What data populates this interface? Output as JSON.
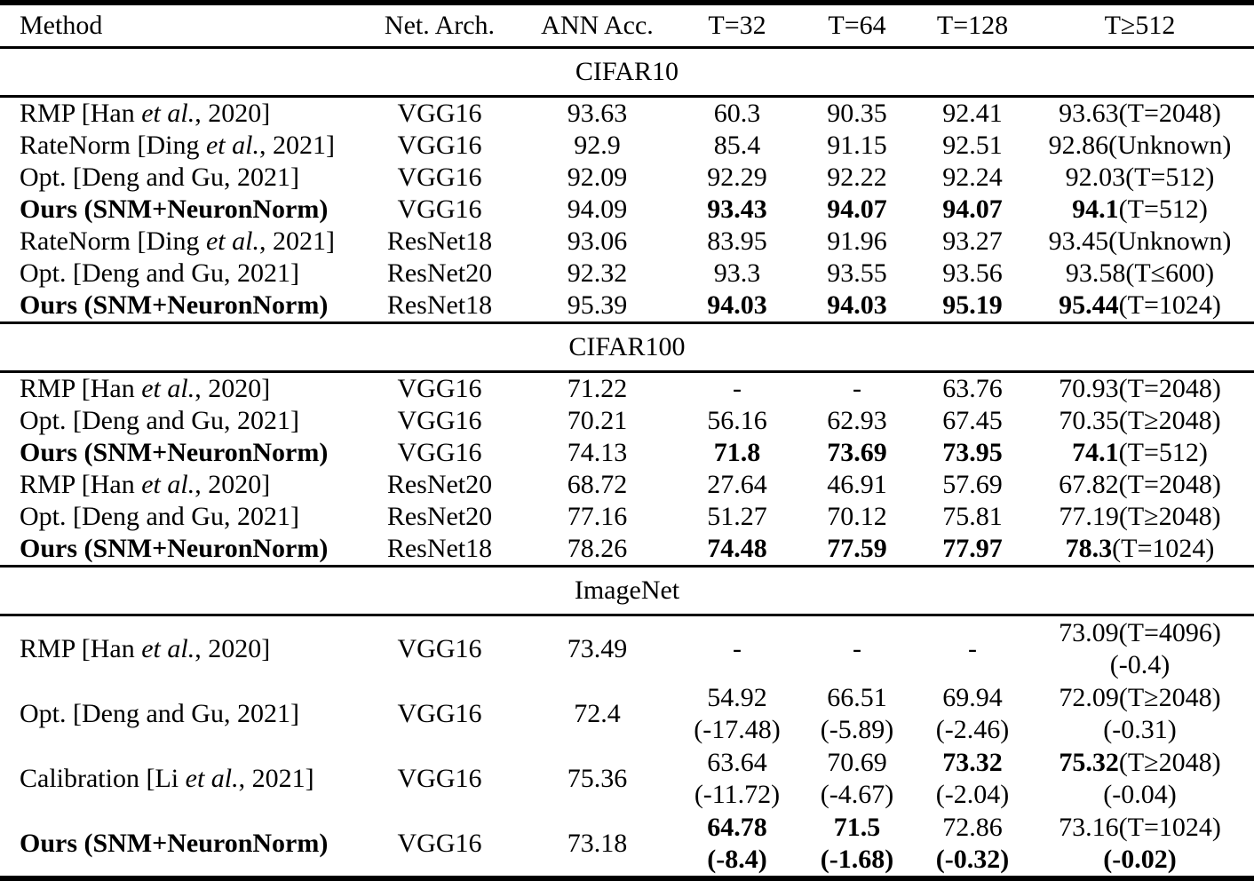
{
  "table": {
    "columns": [
      "Method",
      "Net. Arch.",
      "ANN Acc.",
      "T=32",
      "T=64",
      "T=128",
      "T≥512"
    ],
    "sections": [
      {
        "label": "CIFAR10",
        "rows": [
          {
            "method": [
              [
                "RMP [Han ",
                0,
                0
              ],
              [
                "et al.",
                0,
                1
              ],
              [
                ", 2020]",
                0,
                0
              ]
            ],
            "arch": "VGG16",
            "ann": "93.63",
            "t32": [
              [
                [
                  "60.3",
                  0
                ]
              ]
            ],
            "t64": [
              [
                [
                  "90.35",
                  0
                ]
              ]
            ],
            "t128": [
              [
                [
                  "92.41",
                  0
                ]
              ]
            ],
            "t512": [
              [
                [
                  "93.63(T=2048)",
                  0
                ]
              ]
            ]
          },
          {
            "method": [
              [
                "RateNorm [Ding ",
                0,
                0
              ],
              [
                "et al.",
                0,
                1
              ],
              [
                ", 2021]",
                0,
                0
              ]
            ],
            "arch": "VGG16",
            "ann": "92.9",
            "t32": [
              [
                [
                  "85.4",
                  0
                ]
              ]
            ],
            "t64": [
              [
                [
                  "91.15",
                  0
                ]
              ]
            ],
            "t128": [
              [
                [
                  "92.51",
                  0
                ]
              ]
            ],
            "t512": [
              [
                [
                  "92.86(Unknown)",
                  0
                ]
              ]
            ]
          },
          {
            "method": [
              [
                "Opt. [Deng and Gu, 2021]",
                0,
                0
              ]
            ],
            "arch": "VGG16",
            "ann": "92.09",
            "t32": [
              [
                [
                  "92.29",
                  0
                ]
              ]
            ],
            "t64": [
              [
                [
                  "92.22",
                  0
                ]
              ]
            ],
            "t128": [
              [
                [
                  "92.24",
                  0
                ]
              ]
            ],
            "t512": [
              [
                [
                  "92.03(T=512)",
                  0
                ]
              ]
            ]
          },
          {
            "method": [
              [
                "Ours (SNM+NeuronNorm)",
                1,
                0
              ]
            ],
            "arch": "VGG16",
            "ann": "94.09",
            "t32": [
              [
                [
                  "93.43",
                  1
                ]
              ]
            ],
            "t64": [
              [
                [
                  "94.07",
                  1
                ]
              ]
            ],
            "t128": [
              [
                [
                  "94.07",
                  1
                ]
              ]
            ],
            "t512": [
              [
                [
                  "94.1",
                  1
                ],
                [
                  "(T=512)",
                  0
                ]
              ]
            ]
          },
          {
            "method": [
              [
                "RateNorm [Ding ",
                0,
                0
              ],
              [
                "et al.",
                0,
                1
              ],
              [
                ", 2021]",
                0,
                0
              ]
            ],
            "arch": "ResNet18",
            "ann": "93.06",
            "t32": [
              [
                [
                  "83.95",
                  0
                ]
              ]
            ],
            "t64": [
              [
                [
                  "91.96",
                  0
                ]
              ]
            ],
            "t128": [
              [
                [
                  "93.27",
                  0
                ]
              ]
            ],
            "t512": [
              [
                [
                  "93.45(Unknown)",
                  0
                ]
              ]
            ]
          },
          {
            "method": [
              [
                "Opt. [Deng and Gu, 2021]",
                0,
                0
              ]
            ],
            "arch": "ResNet20",
            "ann": "92.32",
            "t32": [
              [
                [
                  "93.3",
                  0
                ]
              ]
            ],
            "t64": [
              [
                [
                  "93.55",
                  0
                ]
              ]
            ],
            "t128": [
              [
                [
                  "93.56",
                  0
                ]
              ]
            ],
            "t512": [
              [
                [
                  "93.58(T≤600)",
                  0
                ]
              ]
            ]
          },
          {
            "method": [
              [
                "Ours (SNM+NeuronNorm)",
                1,
                0
              ]
            ],
            "arch": "ResNet18",
            "ann": "95.39",
            "t32": [
              [
                [
                  "94.03",
                  1
                ]
              ]
            ],
            "t64": [
              [
                [
                  "94.03",
                  1
                ]
              ]
            ],
            "t128": [
              [
                [
                  "95.19",
                  1
                ]
              ]
            ],
            "t512": [
              [
                [
                  "95.44",
                  1
                ],
                [
                  "(T=1024)",
                  0
                ]
              ]
            ]
          }
        ]
      },
      {
        "label": "CIFAR100",
        "rows": [
          {
            "method": [
              [
                "RMP [Han ",
                0,
                0
              ],
              [
                "et al.",
                0,
                1
              ],
              [
                ", 2020]",
                0,
                0
              ]
            ],
            "arch": "VGG16",
            "ann": "71.22",
            "t32": [
              [
                [
                  "-",
                  0
                ]
              ]
            ],
            "t64": [
              [
                [
                  "-",
                  0
                ]
              ]
            ],
            "t128": [
              [
                [
                  "63.76",
                  0
                ]
              ]
            ],
            "t512": [
              [
                [
                  "70.93(T=2048)",
                  0
                ]
              ]
            ]
          },
          {
            "method": [
              [
                "Opt. [Deng and Gu, 2021]",
                0,
                0
              ]
            ],
            "arch": "VGG16",
            "ann": "70.21",
            "t32": [
              [
                [
                  "56.16",
                  0
                ]
              ]
            ],
            "t64": [
              [
                [
                  "62.93",
                  0
                ]
              ]
            ],
            "t128": [
              [
                [
                  "67.45",
                  0
                ]
              ]
            ],
            "t512": [
              [
                [
                  "70.35(T≥2048)",
                  0
                ]
              ]
            ]
          },
          {
            "method": [
              [
                "Ours (SNM+NeuronNorm)",
                1,
                0
              ]
            ],
            "arch": "VGG16",
            "ann": "74.13",
            "t32": [
              [
                [
                  "71.8",
                  1
                ]
              ]
            ],
            "t64": [
              [
                [
                  "73.69",
                  1
                ]
              ]
            ],
            "t128": [
              [
                [
                  "73.95",
                  1
                ]
              ]
            ],
            "t512": [
              [
                [
                  "74.1",
                  1
                ],
                [
                  "(T=512)",
                  0
                ]
              ]
            ]
          },
          {
            "method": [
              [
                "RMP [Han ",
                0,
                0
              ],
              [
                "et al.",
                0,
                1
              ],
              [
                ", 2020]",
                0,
                0
              ]
            ],
            "arch": "ResNet20",
            "ann": "68.72",
            "t32": [
              [
                [
                  "27.64",
                  0
                ]
              ]
            ],
            "t64": [
              [
                [
                  "46.91",
                  0
                ]
              ]
            ],
            "t128": [
              [
                [
                  "57.69",
                  0
                ]
              ]
            ],
            "t512": [
              [
                [
                  "67.82(T=2048)",
                  0
                ]
              ]
            ]
          },
          {
            "method": [
              [
                "Opt. [Deng and Gu, 2021]",
                0,
                0
              ]
            ],
            "arch": "ResNet20",
            "ann": "77.16",
            "t32": [
              [
                [
                  "51.27",
                  0
                ]
              ]
            ],
            "t64": [
              [
                [
                  "70.12",
                  0
                ]
              ]
            ],
            "t128": [
              [
                [
                  "75.81",
                  0
                ]
              ]
            ],
            "t512": [
              [
                [
                  "77.19(T≥2048)",
                  0
                ]
              ]
            ]
          },
          {
            "method": [
              [
                "Ours (SNM+NeuronNorm)",
                1,
                0
              ]
            ],
            "arch": "ResNet18",
            "ann": "78.26",
            "t32": [
              [
                [
                  "74.48",
                  1
                ]
              ]
            ],
            "t64": [
              [
                [
                  "77.59",
                  1
                ]
              ]
            ],
            "t128": [
              [
                [
                  "77.97",
                  1
                ]
              ]
            ],
            "t512": [
              [
                [
                  "78.3",
                  1
                ],
                [
                  "(T=1024)",
                  0
                ]
              ]
            ]
          }
        ]
      },
      {
        "label": "ImageNet",
        "rows": [
          {
            "method": [
              [
                "RMP [Han ",
                0,
                0
              ],
              [
                "et al.",
                0,
                1
              ],
              [
                ", 2020]",
                0,
                0
              ]
            ],
            "arch": "VGG16",
            "ann": "73.49",
            "t32": [
              [
                [
                  "-",
                  0
                ]
              ]
            ],
            "t64": [
              [
                [
                  "-",
                  0
                ]
              ]
            ],
            "t128": [
              [
                [
                  "-",
                  0
                ]
              ]
            ],
            "t512": [
              [
                [
                  "73.09(T=4096)",
                  0
                ]
              ],
              [
                [
                  "(-0.4)",
                  0
                ]
              ]
            ]
          },
          {
            "method": [
              [
                "Opt. [Deng and Gu, 2021]",
                0,
                0
              ]
            ],
            "arch": "VGG16",
            "ann": "72.4",
            "t32": [
              [
                [
                  "54.92",
                  0
                ]
              ],
              [
                [
                  "(-17.48)",
                  0
                ]
              ]
            ],
            "t64": [
              [
                [
                  "66.51",
                  0
                ]
              ],
              [
                [
                  "(-5.89)",
                  0
                ]
              ]
            ],
            "t128": [
              [
                [
                  "69.94",
                  0
                ]
              ],
              [
                [
                  "(-2.46)",
                  0
                ]
              ]
            ],
            "t512": [
              [
                [
                  "72.09(T≥2048)",
                  0
                ]
              ],
              [
                [
                  "(-0.31)",
                  0
                ]
              ]
            ]
          },
          {
            "method": [
              [
                "Calibration [Li ",
                0,
                0
              ],
              [
                "et al.",
                0,
                1
              ],
              [
                ", 2021]",
                0,
                0
              ]
            ],
            "arch": "VGG16",
            "ann": "75.36",
            "t32": [
              [
                [
                  "63.64",
                  0
                ]
              ],
              [
                [
                  "(-11.72)",
                  0
                ]
              ]
            ],
            "t64": [
              [
                [
                  "70.69",
                  0
                ]
              ],
              [
                [
                  "(-4.67)",
                  0
                ]
              ]
            ],
            "t128": [
              [
                [
                  "73.32",
                  1
                ]
              ],
              [
                [
                  "(-2.04)",
                  0
                ]
              ]
            ],
            "t512": [
              [
                [
                  "75.32",
                  1
                ],
                [
                  "(T≥2048)",
                  0
                ]
              ],
              [
                [
                  "(-0.04)",
                  0
                ]
              ]
            ]
          },
          {
            "method": [
              [
                "Ours (SNM+NeuronNorm)",
                1,
                0
              ]
            ],
            "arch": "VGG16",
            "ann": "73.18",
            "t32": [
              [
                [
                  "64.78",
                  1
                ]
              ],
              [
                [
                  "(-8.4)",
                  1
                ]
              ]
            ],
            "t64": [
              [
                [
                  "71.5",
                  1
                ]
              ],
              [
                [
                  "(-1.68)",
                  1
                ]
              ]
            ],
            "t128": [
              [
                [
                  "72.86",
                  0
                ]
              ],
              [
                [
                  "(-0.32)",
                  1
                ]
              ]
            ],
            "t512": [
              [
                [
                  "73.16(T=1024)",
                  0
                ]
              ],
              [
                [
                  "(-0.02)",
                  1
                ]
              ]
            ]
          }
        ]
      }
    ]
  }
}
